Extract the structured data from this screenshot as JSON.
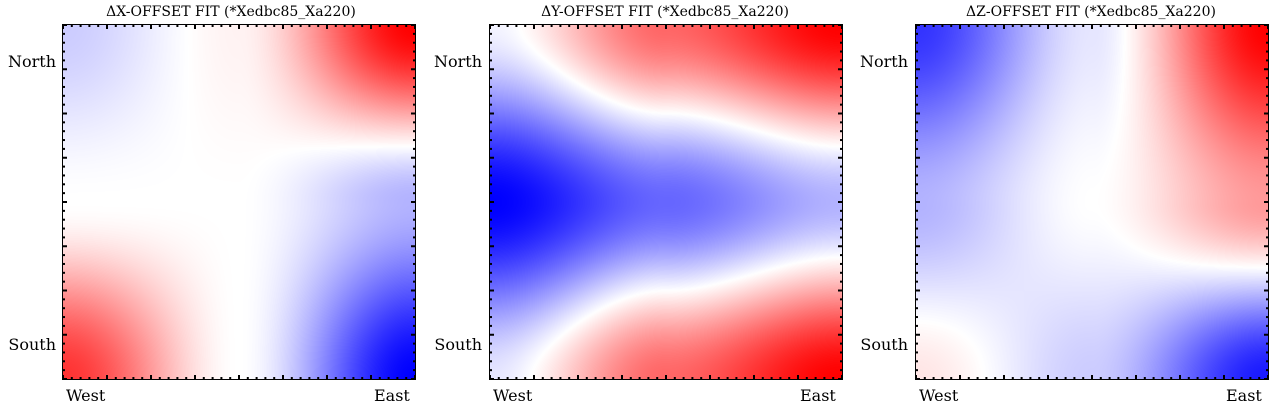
{
  "colors": {
    "low": "#0000ff",
    "mid": "#ffffff",
    "high": "#ff0000",
    "frame": "#000000"
  },
  "chart_data": [
    {
      "type": "heatmap",
      "title": "ΔX-OFFSET FIT (*Xedbc85_Xa220)",
      "x_tick_labels": [
        "West",
        "East"
      ],
      "y_tick_labels": [
        "North",
        "South"
      ],
      "colormap": "bwr",
      "value_range": [
        -1,
        1
      ],
      "grid_fields": {
        "north_west": -0.2,
        "north_center": 0.05,
        "north_east": 1.0,
        "center_west": 0.0,
        "center": 0.0,
        "center_east": -0.3,
        "south_west": 0.8,
        "south_center": 0.0,
        "south_east": -1.0
      }
    },
    {
      "type": "heatmap",
      "title": "ΔY-OFFSET FIT (*Xedbc85_Xa220)",
      "x_tick_labels": [
        "West",
        "East"
      ],
      "y_tick_labels": [
        "North",
        "South"
      ],
      "colormap": "bwr",
      "value_range": [
        -1,
        1
      ],
      "grid_fields": {
        "north_west": -0.05,
        "north_center": 0.6,
        "north_east": 1.0,
        "center_west": -1.0,
        "center": -0.6,
        "center_east": -0.3,
        "south_west": -0.1,
        "south_center": 0.6,
        "south_east": 1.0
      }
    },
    {
      "type": "heatmap",
      "title": "ΔZ-OFFSET FIT (*Xedbc85_Xa220)",
      "x_tick_labels": [
        "West",
        "East"
      ],
      "y_tick_labels": [
        "North",
        "South"
      ],
      "colormap": "bwr",
      "value_range": [
        -1,
        1
      ],
      "grid_fields": {
        "north_west": -0.8,
        "north_center": -0.1,
        "north_east": 1.0,
        "center_west": -0.3,
        "center": 0.0,
        "center_east": 0.4,
        "south_west": 0.1,
        "south_center": -0.2,
        "south_east": -0.9
      }
    }
  ]
}
